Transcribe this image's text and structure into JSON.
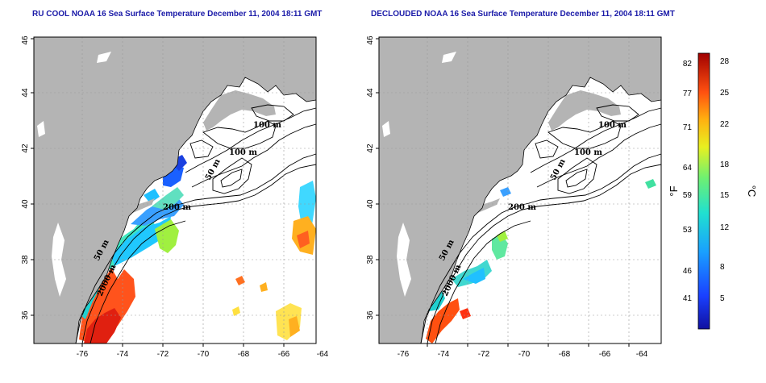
{
  "panels": [
    {
      "title": "RU COOL NOAA 16 Sea Surface Temperature December 11, 2004 18:11 GMT",
      "x_ticks": [
        "-76",
        "-74",
        "-72",
        "-70",
        "-68",
        "-66",
        "-64"
      ],
      "y_ticks": [
        "36",
        "38",
        "40",
        "42",
        "44",
        "46"
      ],
      "contour_labels": [
        "100 m",
        "100 m",
        "50 m",
        "200 m",
        "50 m",
        "2000 m"
      ]
    },
    {
      "title": "DECLOUDED NOAA 16 Sea Surface Temperature December 11, 2004 18:11 GMT",
      "x_ticks": [
        "-76",
        "-74",
        "-72",
        "-70",
        "-68",
        "-66",
        "-64"
      ],
      "y_ticks": [
        "36",
        "38",
        "40",
        "42",
        "44",
        "46"
      ],
      "contour_labels": [
        "100 m",
        "100 m",
        "50 m",
        "200 m",
        "50 m",
        "2000 m"
      ]
    }
  ],
  "colorbar": {
    "fahrenheit_ticks": [
      "82",
      "77",
      "71",
      "64",
      "59",
      "53",
      "46",
      "41"
    ],
    "celsius_ticks": [
      "28",
      "25",
      "22",
      "18",
      "15",
      "12",
      "8",
      "5"
    ],
    "fahrenheit_unit": "°F",
    "celsius_unit": "°C"
  },
  "colors": {
    "land": "#b4b4b4",
    "ocean": "#ffffff",
    "title": "#1a1aa8"
  }
}
